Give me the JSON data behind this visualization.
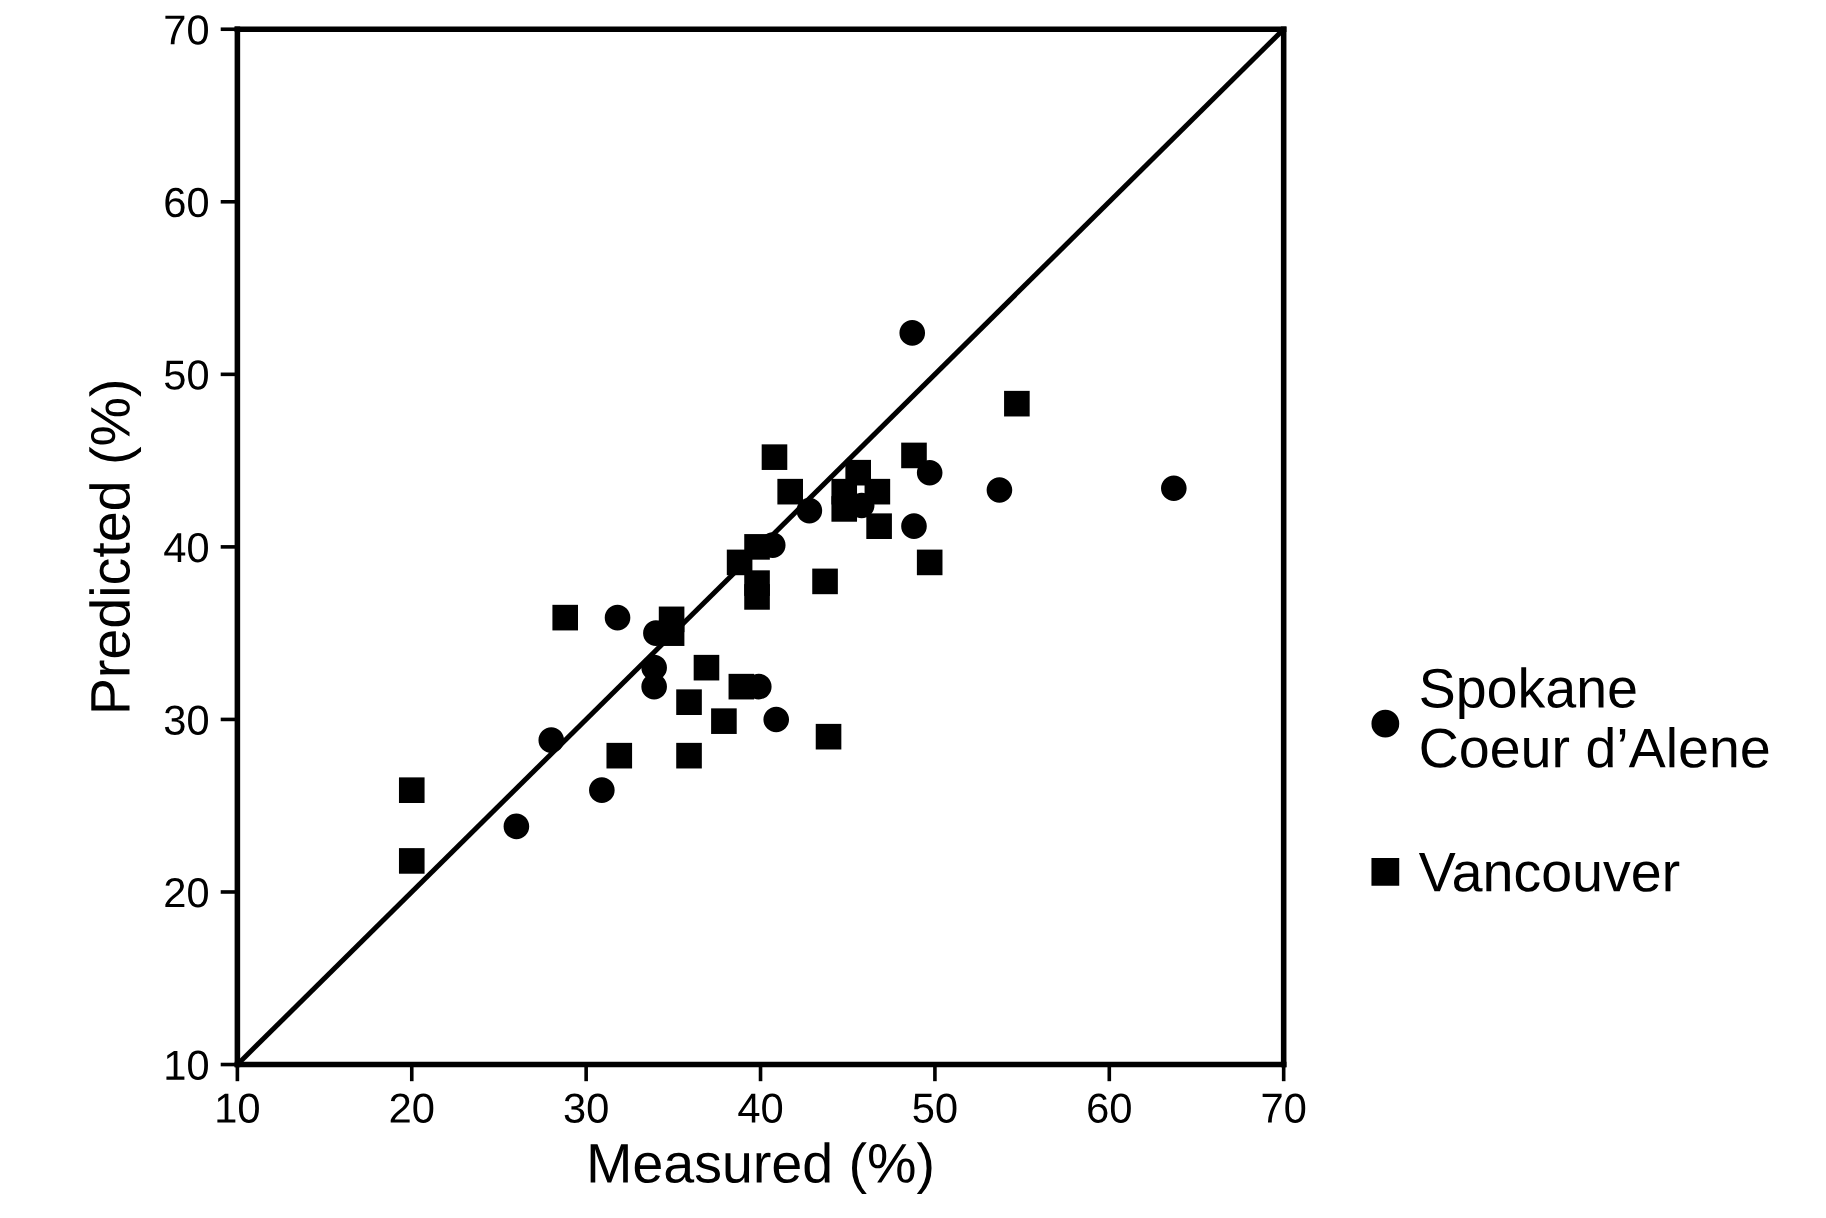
{
  "chart_data": {
    "type": "scatter",
    "xlabel": "Measured (%)",
    "ylabel": "Predicted (%)",
    "xlim": [
      10,
      70
    ],
    "ylim": [
      10,
      70
    ],
    "xticks": [
      10,
      20,
      30,
      40,
      50,
      60,
      70
    ],
    "yticks": [
      10,
      20,
      30,
      40,
      50,
      60,
      70
    ],
    "grid": false,
    "legend": "right",
    "series": [
      {
        "name": "Spokane\nCoeur d’Alene",
        "color": "#000000",
        "marker": "circle",
        "x": [
          26.0,
          28.0,
          30.9,
          31.8,
          33.9,
          33.9,
          34.0,
          39.9,
          40.9,
          40.7,
          42.8,
          45.8,
          48.7,
          49.7,
          48.8,
          53.7,
          63.7
        ],
        "values": [
          23.8,
          28.8,
          25.9,
          35.9,
          33.0,
          31.9,
          35.0,
          31.9,
          30.0,
          40.1,
          42.1,
          42.4,
          52.4,
          44.3,
          41.2,
          43.3,
          43.4
        ]
      },
      {
        "name": "Vancouver",
        "color": "#000000",
        "marker": "square",
        "x": [
          20.0,
          20.0,
          28.8,
          31.9,
          34.9,
          34.9,
          35.9,
          35.9,
          36.9,
          37.9,
          38.9,
          38.8,
          39.8,
          39.8,
          39.8,
          40.8,
          41.7,
          43.7,
          43.9,
          45.6,
          44.8,
          46.7,
          44.8,
          46.8,
          48.8,
          49.7,
          54.7
        ],
        "values": [
          25.9,
          21.8,
          35.9,
          27.9,
          35.8,
          35.0,
          31.0,
          27.9,
          33.0,
          29.9,
          31.9,
          39.1,
          40.0,
          37.9,
          37.1,
          45.2,
          43.2,
          38.0,
          29.0,
          44.3,
          43.2,
          43.2,
          42.2,
          41.2,
          45.3,
          39.1,
          48.3
        ]
      },
      {
        "type": "line",
        "color": "#000000",
        "marker": "none",
        "line_style": "solid",
        "x": [
          10,
          70
        ],
        "values": [
          10,
          70
        ]
      }
    ]
  }
}
